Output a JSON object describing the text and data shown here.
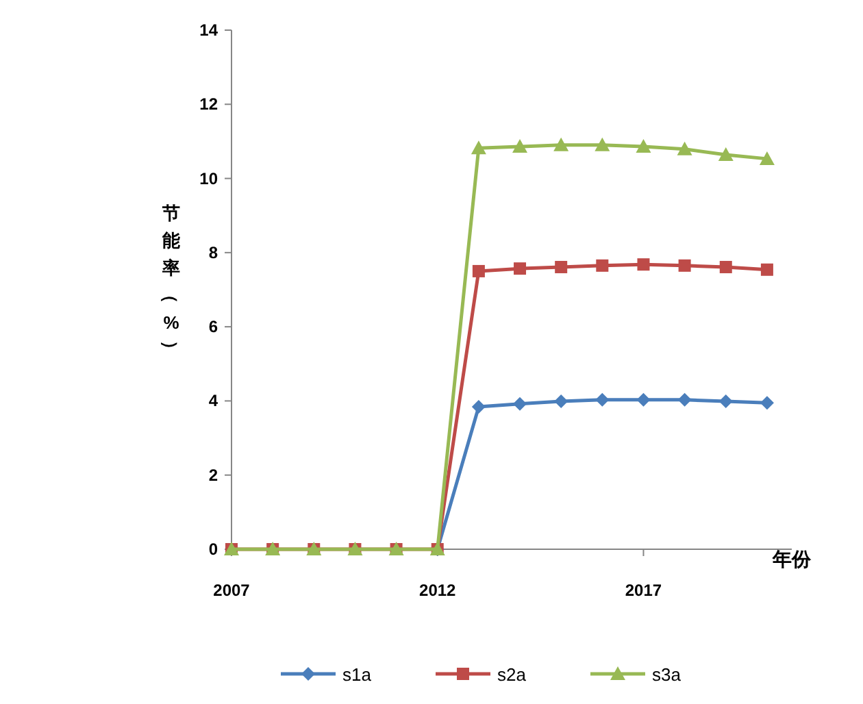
{
  "chart_data": {
    "type": "line",
    "xlabel": "年份",
    "ylabel": "节能率（%）",
    "x": [
      2007,
      2008,
      2009,
      2010,
      2011,
      2012,
      2013,
      2014,
      2015,
      2016,
      2017,
      2018,
      2019,
      2020
    ],
    "xlim": [
      2007,
      2020.6
    ],
    "xticks": [
      2007,
      2012,
      2017
    ],
    "ylim": [
      0,
      14
    ],
    "yticks": [
      0,
      2,
      4,
      6,
      8,
      10,
      12,
      14
    ],
    "grid": false,
    "legend": "bottom",
    "series": [
      {
        "name": "s1a",
        "color": "#4a7ebb",
        "marker": "diamond",
        "values": [
          null,
          null,
          null,
          null,
          null,
          0,
          3.84,
          3.92,
          3.99,
          4.03,
          4.03,
          4.03,
          3.99,
          3.95
        ]
      },
      {
        "name": "s2a",
        "color": "#be4b48",
        "marker": "square",
        "values": [
          0,
          0,
          0,
          0,
          0,
          0,
          7.5,
          7.57,
          7.61,
          7.65,
          7.68,
          7.65,
          7.61,
          7.54
        ]
      },
      {
        "name": "s3a",
        "color": "#98b954",
        "marker": "triangle",
        "values": [
          0,
          0,
          0,
          0,
          0,
          0,
          10.82,
          10.86,
          10.9,
          10.9,
          10.86,
          10.79,
          10.64,
          10.53
        ]
      }
    ]
  }
}
